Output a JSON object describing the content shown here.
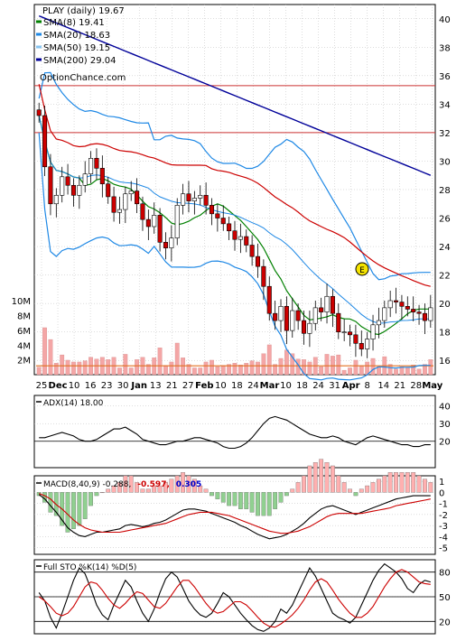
{
  "colors": {
    "grid": "#bbbbbb",
    "frame": "#000000",
    "sma8": "#008000",
    "sma20": "#1e88e5",
    "sma50": "#cc0000",
    "sma200": "#000099",
    "bb": "#1e88e5",
    "up": "#ffffff",
    "down": "#cc0000",
    "ref": "#cc3333",
    "volume": "#f4a6a6",
    "volume_avg": "#e07020",
    "adx": "#000000",
    "pdi": "#008000",
    "mdi": "#cc0000",
    "hist_pos": "#ffb0b0",
    "hist_neg": "#90d090",
    "stoK": "#000000",
    "stoD": "#cc0000",
    "macd_red": "#cc0000",
    "macd_blue": "#0000cc"
  },
  "legend": {
    "title": "PLAY (daily) 19.67",
    "items": [
      {
        "label": "SMA(8) 19.41",
        "color": "#008000"
      },
      {
        "label": "SMA(20) 18.63",
        "color": "#1e88e5"
      },
      {
        "label": "SMA(50) 19.15",
        "color": "#87c4f0"
      },
      {
        "label": "SMA(200) 29.04",
        "color": "#000099"
      }
    ],
    "watermark": "OptionChance.com"
  },
  "adx_panel": {
    "label": "ADX(14) 18.00"
  },
  "macd_panel": {
    "label_prefix": "MACD(8,40,9) -0.288,",
    "value_red": "-0.597,",
    "value_blue": "0.305"
  },
  "sto_panel": {
    "label": "Full STO %K(14) %D(5)"
  },
  "chart_data": [
    {
      "type": "candlestick",
      "title": "PLAY (daily) 19.67",
      "ylim": [
        15,
        41
      ],
      "y_ticks": [
        16,
        18,
        20,
        22,
        24,
        26,
        28,
        30,
        32,
        34,
        36,
        38,
        40
      ],
      "x_tick_labels": [
        "25",
        "Dec",
        "10",
        "16",
        "23",
        "30",
        "Jan",
        "13",
        "21",
        "27",
        "Feb",
        "10",
        "18",
        "24",
        "Mar",
        "10",
        "18",
        "24",
        "31",
        "Apr",
        "8",
        "14",
        "21",
        "28",
        "May"
      ],
      "reference_lines": [
        35.3,
        32.0
      ],
      "close": [
        33.2,
        29.6,
        27.0,
        27.6,
        28.9,
        28.3,
        27.6,
        28.3,
        29.1,
        30.2,
        29.5,
        28.4,
        27.5,
        26.4,
        26.6,
        27.7,
        27.9,
        27.0,
        25.9,
        25.4,
        26.2,
        24.3,
        23.9,
        24.6,
        26.9,
        27.7,
        27.2,
        27.4,
        27.6,
        26.9,
        26.3,
        26.0,
        25.6,
        25.1,
        24.5,
        24.7,
        24.1,
        23.3,
        22.6,
        21.2,
        19.3,
        18.8,
        19.8,
        18.1,
        19.5,
        18.8,
        17.9,
        18.6,
        19.7,
        19.4,
        20.5,
        19.3,
        18.0,
        18.0,
        17.8,
        17.2,
        16.8,
        17.5,
        18.5,
        18.8,
        19.7,
        20.2,
        20.1,
        19.8,
        19.6,
        19.4,
        19.3,
        18.8,
        19.7
      ],
      "volume_axis": {
        "ylim": [
          0,
          11
        ],
        "ticks": [
          "2M",
          "4M",
          "6M",
          "8M",
          "10M"
        ]
      },
      "volume_avg": 1.2
    },
    {
      "type": "line",
      "title": "ADX(14) 18.00",
      "ylim": [
        5,
        46
      ],
      "y_ticks": [
        20,
        30,
        40
      ],
      "series": [
        {
          "name": "ADX(14) 18.00",
          "values": [
            22,
            22,
            23,
            24,
            25,
            24,
            23,
            21,
            20,
            20,
            21,
            23,
            25,
            27,
            27,
            28,
            26,
            24,
            21,
            20,
            19,
            18,
            18,
            19,
            20,
            20,
            21,
            22,
            22,
            21,
            20,
            19,
            17,
            16,
            16,
            17,
            19,
            22,
            26,
            30,
            33,
            34,
            33,
            32,
            30,
            28,
            26,
            24,
            23,
            22,
            22,
            23,
            22,
            20,
            19,
            18,
            20,
            22,
            23,
            22,
            21,
            20,
            19,
            18,
            18,
            17,
            17,
            18,
            18
          ]
        }
      ]
    },
    {
      "type": "bar",
      "title": "MACD(8,40,9) -0.288, -0.597, 0.305",
      "ylim": [
        -5.6,
        1.5
      ],
      "y_ticks": [
        1,
        0,
        -1,
        -2,
        -3,
        -4,
        -5
      ],
      "series": [
        {
          "name": "-0.288",
          "values": [
            -0.2,
            -0.6,
            -1.2,
            -1.8,
            -2.5,
            -3.2,
            -3.6,
            -3.9,
            -4.0,
            -3.8,
            -3.6,
            -3.6,
            -3.5,
            -3.4,
            -3.3,
            -3.0,
            -2.9,
            -3.0,
            -3.1,
            -3.0,
            -2.8,
            -2.7,
            -2.5,
            -2.2,
            -1.9,
            -1.6,
            -1.5,
            -1.5,
            -1.6,
            -1.7,
            -1.9,
            -2.1,
            -2.3,
            -2.5,
            -2.7,
            -3.0,
            -3.2,
            -3.5,
            -3.8,
            -4.0,
            -4.2,
            -4.1,
            -4.0,
            -3.8,
            -3.5,
            -3.2,
            -2.8,
            -2.3,
            -1.9,
            -1.5,
            -1.3,
            -1.2,
            -1.4,
            -1.6,
            -1.8,
            -2.0,
            -1.8,
            -1.6,
            -1.4,
            -1.2,
            -1.0,
            -0.8,
            -0.6,
            -0.5,
            -0.4,
            -0.3,
            -0.3,
            -0.3,
            -0.3
          ]
        },
        {
          "name": "-0.597",
          "values": [
            -0.1,
            -0.3,
            -0.6,
            -1.1,
            -1.5,
            -2.0,
            -2.5,
            -2.9,
            -3.2,
            -3.4,
            -3.5,
            -3.6,
            -3.6,
            -3.6,
            -3.6,
            -3.5,
            -3.4,
            -3.3,
            -3.2,
            -3.1,
            -3.0,
            -2.9,
            -2.8,
            -2.6,
            -2.4,
            -2.2,
            -2.0,
            -1.9,
            -1.8,
            -1.8,
            -1.8,
            -1.9,
            -2.0,
            -2.1,
            -2.3,
            -2.5,
            -2.7,
            -2.9,
            -3.1,
            -3.3,
            -3.5,
            -3.6,
            -3.7,
            -3.7,
            -3.6,
            -3.5,
            -3.3,
            -3.1,
            -2.8,
            -2.5,
            -2.2,
            -2.0,
            -1.9,
            -1.9,
            -1.9,
            -1.9,
            -1.9,
            -1.8,
            -1.7,
            -1.6,
            -1.5,
            -1.4,
            -1.2,
            -1.1,
            -1.0,
            -0.9,
            -0.8,
            -0.7,
            -0.6
          ]
        }
      ]
    },
    {
      "type": "line",
      "title": "Full STO %K(14) %D(5)",
      "ylim": [
        5,
        95
      ],
      "y_ticks": [
        20,
        50,
        80
      ],
      "reference_lines": [
        20,
        50,
        80
      ],
      "series": [
        {
          "name": "%K(14)",
          "values": [
            55,
            45,
            25,
            12,
            30,
            50,
            70,
            85,
            78,
            60,
            40,
            28,
            22,
            40,
            55,
            70,
            62,
            45,
            30,
            20,
            35,
            55,
            72,
            80,
            74,
            60,
            45,
            35,
            28,
            25,
            30,
            42,
            55,
            50,
            40,
            30,
            22,
            15,
            10,
            8,
            12,
            20,
            35,
            30,
            40,
            55,
            70,
            85,
            75,
            60,
            45,
            30,
            25,
            22,
            18,
            25,
            40,
            55,
            70,
            82,
            90,
            85,
            80,
            72,
            60,
            55,
            65,
            70,
            68
          ]
        },
        {
          "name": "%D(5)",
          "values": [
            50,
            45,
            38,
            30,
            27,
            30,
            38,
            50,
            62,
            68,
            66,
            58,
            48,
            40,
            36,
            42,
            50,
            56,
            54,
            46,
            38,
            36,
            42,
            52,
            62,
            70,
            70,
            62,
            52,
            42,
            34,
            30,
            32,
            38,
            44,
            44,
            40,
            33,
            25,
            18,
            14,
            13,
            17,
            22,
            28,
            36,
            46,
            58,
            68,
            72,
            68,
            58,
            47,
            38,
            30,
            25,
            25,
            30,
            38,
            50,
            62,
            72,
            80,
            83,
            80,
            74,
            68,
            66,
            65
          ]
        }
      ]
    }
  ]
}
